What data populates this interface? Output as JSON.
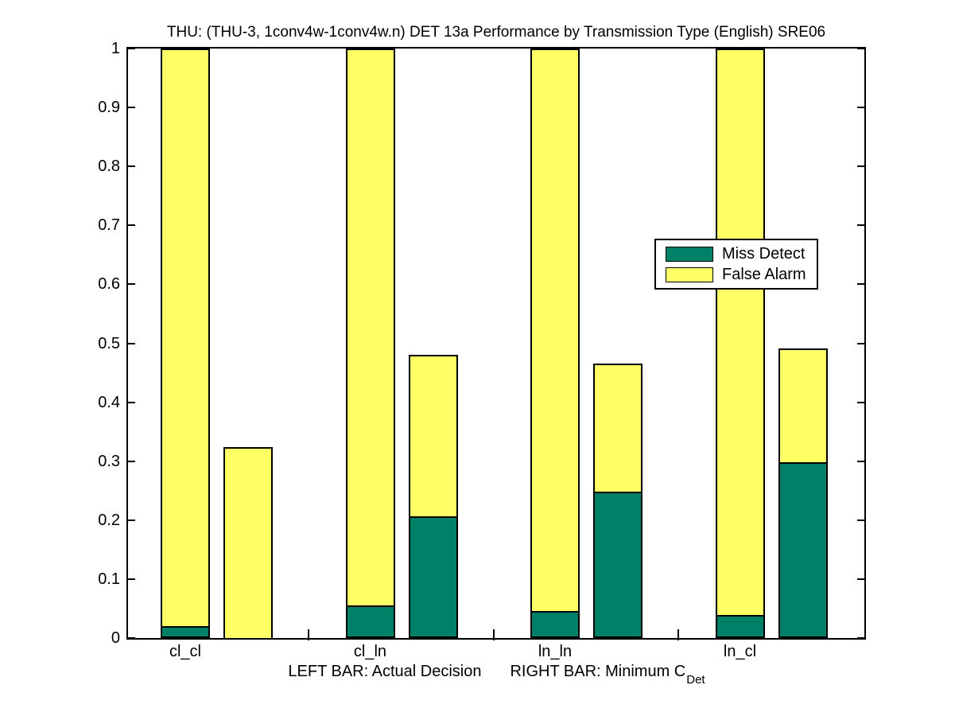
{
  "title": "THU: (THU-3, 1conv4w-1conv4w.n) DET 13a Performance by Transmission Type (English) SRE06",
  "x_axis_label": {
    "left_text": "LEFT BAR: Actual Decision",
    "right_text_main": "RIGHT BAR: Minimum C",
    "right_text_subscript": "Det"
  },
  "legend": {
    "position": "upper-right-inside",
    "items": [
      {
        "label": "Miss Detect",
        "color": "#008066"
      },
      {
        "label": "False Alarm",
        "color": "#ffff66"
      }
    ]
  },
  "chart_data": {
    "type": "bar",
    "stacked": true,
    "grid": false,
    "title": "THU: (THU-3, 1conv4w-1conv4w.n) DET 13a Performance by Transmission Type (English) SRE06",
    "categories": [
      "cl_cl",
      "cl_ln",
      "ln_ln",
      "ln_cl"
    ],
    "bar_meaning": {
      "left_bar": "Actual Decision",
      "right_bar": "Minimum C_Det"
    },
    "ylim": [
      0,
      1
    ],
    "yticks": [
      "0",
      "0.1",
      "0.2",
      "0.3",
      "0.4",
      "0.5",
      "0.6",
      "0.7",
      "0.8",
      "0.9",
      "1"
    ],
    "left_bars_clipped_at_top": true,
    "series": [
      {
        "name": "Miss Detect",
        "color": "#008066",
        "left_bar_values": [
          0.02,
          0.056,
          0.046,
          0.039
        ],
        "right_bar_values": [
          0.0,
          0.207,
          0.249,
          0.298
        ]
      },
      {
        "name": "False Alarm",
        "color": "#ffff66",
        "left_bar_stack_top": [
          1.0,
          1.0,
          1.0,
          1.0
        ],
        "right_bar_stack_top": [
          0.324,
          0.48,
          0.466,
          0.491
        ]
      }
    ]
  }
}
